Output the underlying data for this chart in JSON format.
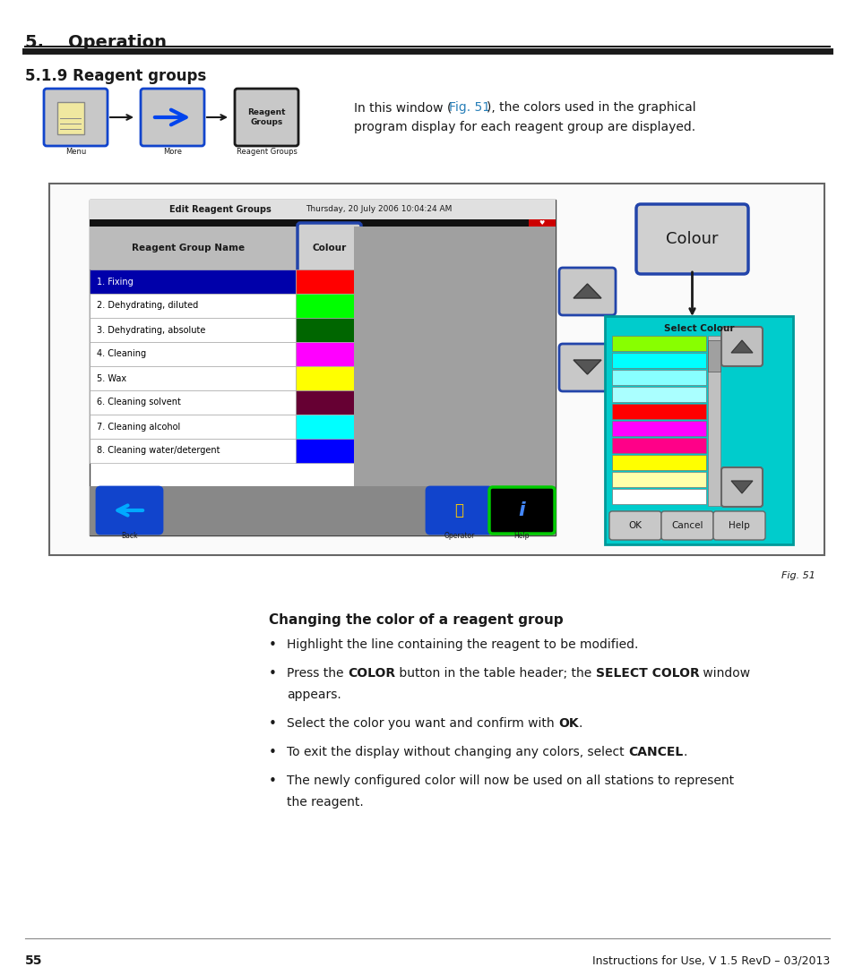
{
  "title_section": "5.    Operation",
  "subtitle": "5.1.9 Reagent groups",
  "nav_labels": [
    "Menu",
    "More",
    "Reagent Groups"
  ],
  "description_text_parts": [
    {
      "text": "In this window (",
      "bold": false,
      "color": "#1a1a1a"
    },
    {
      "text": "Fig. 51",
      "bold": false,
      "color": "#2980B9"
    },
    {
      "text": "), the colors used in the graphical",
      "bold": false,
      "color": "#1a1a1a"
    }
  ],
  "description_line2": "program display for each reagent group are displayed.",
  "fig_label": "Fig. 51",
  "changing_color_title": "Changing the color of a reagent group",
  "bullet_points_raw": [
    "Highlight the line containing the reagent to be modified.",
    "Press the |COLOR| button in the table header; the |SELECT COLOR| window\nappears.",
    "Select the color you want and confirm with |OK|.",
    "To exit the display without changing any colors, select |CANCEL|.",
    "The newly configured color will now be used on all stations to represent\nthe reagent."
  ],
  "reagent_groups": [
    {
      "name": "1. Fixing",
      "color": "#FF0000",
      "row_bg": "#0000AA",
      "text_color": "#FFFFFF"
    },
    {
      "name": "2. Dehydrating, diluted",
      "color": "#00FF00",
      "row_bg": "#FFFFFF",
      "text_color": "#000000"
    },
    {
      "name": "3. Dehydrating, absolute",
      "color": "#006600",
      "row_bg": "#FFFFFF",
      "text_color": "#000000"
    },
    {
      "name": "4. Cleaning",
      "color": "#FF00FF",
      "row_bg": "#FFFFFF",
      "text_color": "#000000"
    },
    {
      "name": "5. Wax",
      "color": "#FFFF00",
      "row_bg": "#FFFFFF",
      "text_color": "#000000"
    },
    {
      "name": "6. Cleaning solvent",
      "color": "#660033",
      "row_bg": "#FFFFFF",
      "text_color": "#000000"
    },
    {
      "name": "7. Cleaning alcohol",
      "color": "#00FFFF",
      "row_bg": "#FFFFFF",
      "text_color": "#000000"
    },
    {
      "name": "8. Cleaning water/detergent",
      "color": "#0000FF",
      "row_bg": "#FFFFFF",
      "text_color": "#000000"
    }
  ],
  "select_colors": [
    "#88FF00",
    "#00FFFF",
    "#88FFFF",
    "#AAFFFF",
    "#FF0000",
    "#FF00FF",
    "#FF0088",
    "#FFFF00",
    "#FFFFAA",
    "#FFFFFF"
  ],
  "page_number": "55",
  "footer_text": "Instructions for Use, V 1.5 RevD – 03/2013",
  "background_color": "#FFFFFF",
  "fig_ref_color": "#2980B9"
}
